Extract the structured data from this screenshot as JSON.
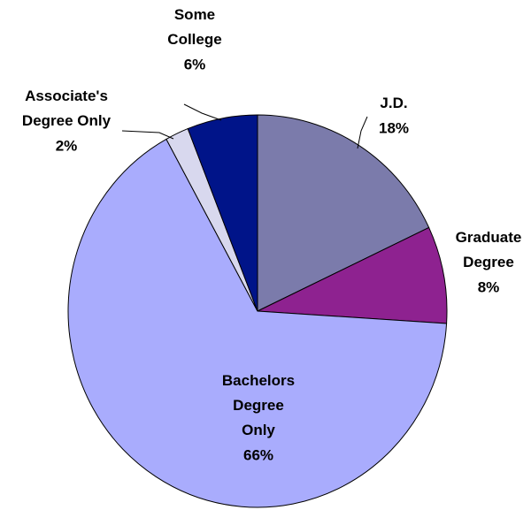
{
  "chart_data": {
    "type": "pie",
    "categories": [
      "J.D.",
      "Graduate Degree",
      "Bachelors Degree Only",
      "Associate's Degree Only",
      "Some College"
    ],
    "values": [
      18,
      8,
      66,
      2,
      6
    ],
    "value_labels": [
      "18%",
      "8%",
      "66%",
      "2%",
      "6%"
    ],
    "colors": [
      "#7b7bab",
      "#8e2290",
      "#a9acfd",
      "#d8d8ee",
      "#001489"
    ]
  }
}
